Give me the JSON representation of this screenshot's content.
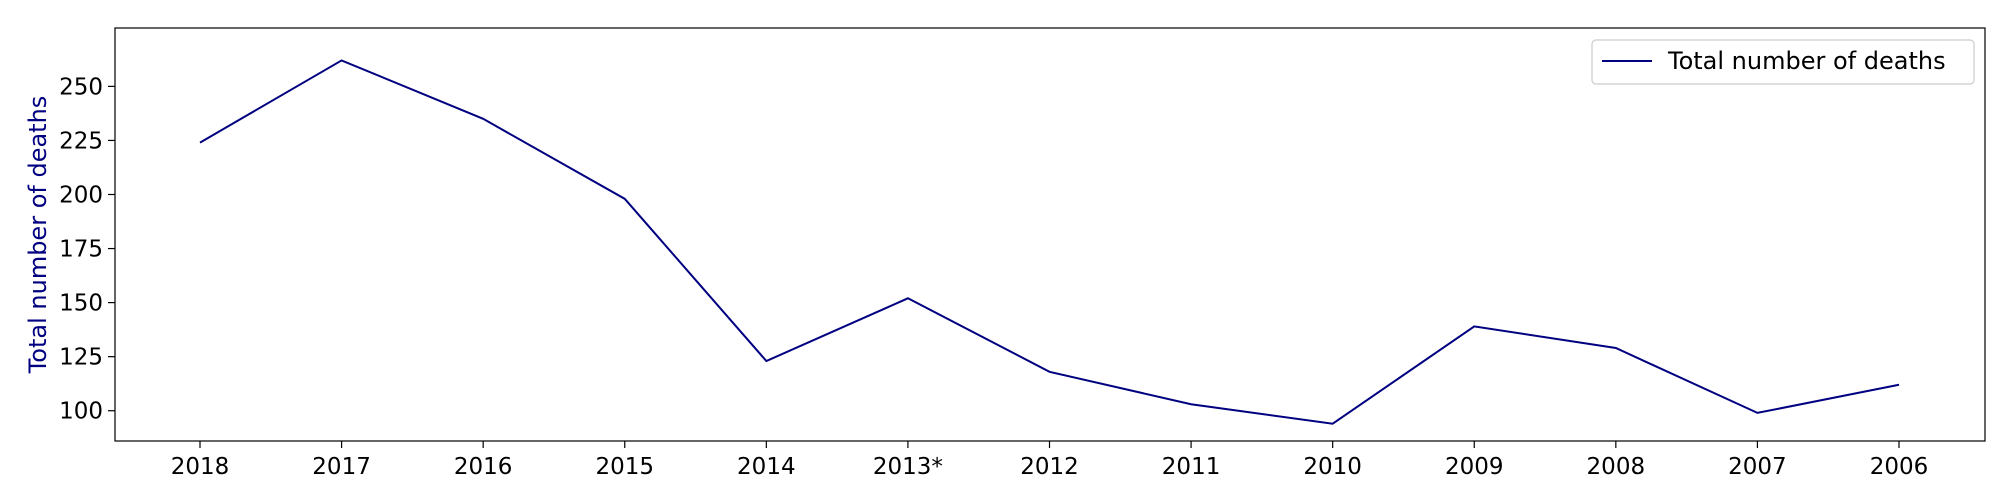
{
  "chart_data": {
    "type": "line",
    "title": "",
    "xlabel": "",
    "ylabel": "Total number of deaths",
    "categories": [
      "2018",
      "2017",
      "2016",
      "2015",
      "2014",
      "2013*",
      "2012",
      "2011",
      "2010",
      "2009",
      "2008",
      "2007",
      "2006"
    ],
    "series": [
      {
        "name": "Total number of deaths",
        "color": "#000080",
        "values": [
          224,
          262,
          235,
          198,
          123,
          152,
          118,
          103,
          94,
          139,
          129,
          99,
          112
        ]
      }
    ],
    "ylim": [
      86,
      277
    ],
    "yticks": [
      100,
      125,
      150,
      175,
      200,
      225,
      250
    ],
    "grid": false,
    "legend_position": "top-right"
  }
}
